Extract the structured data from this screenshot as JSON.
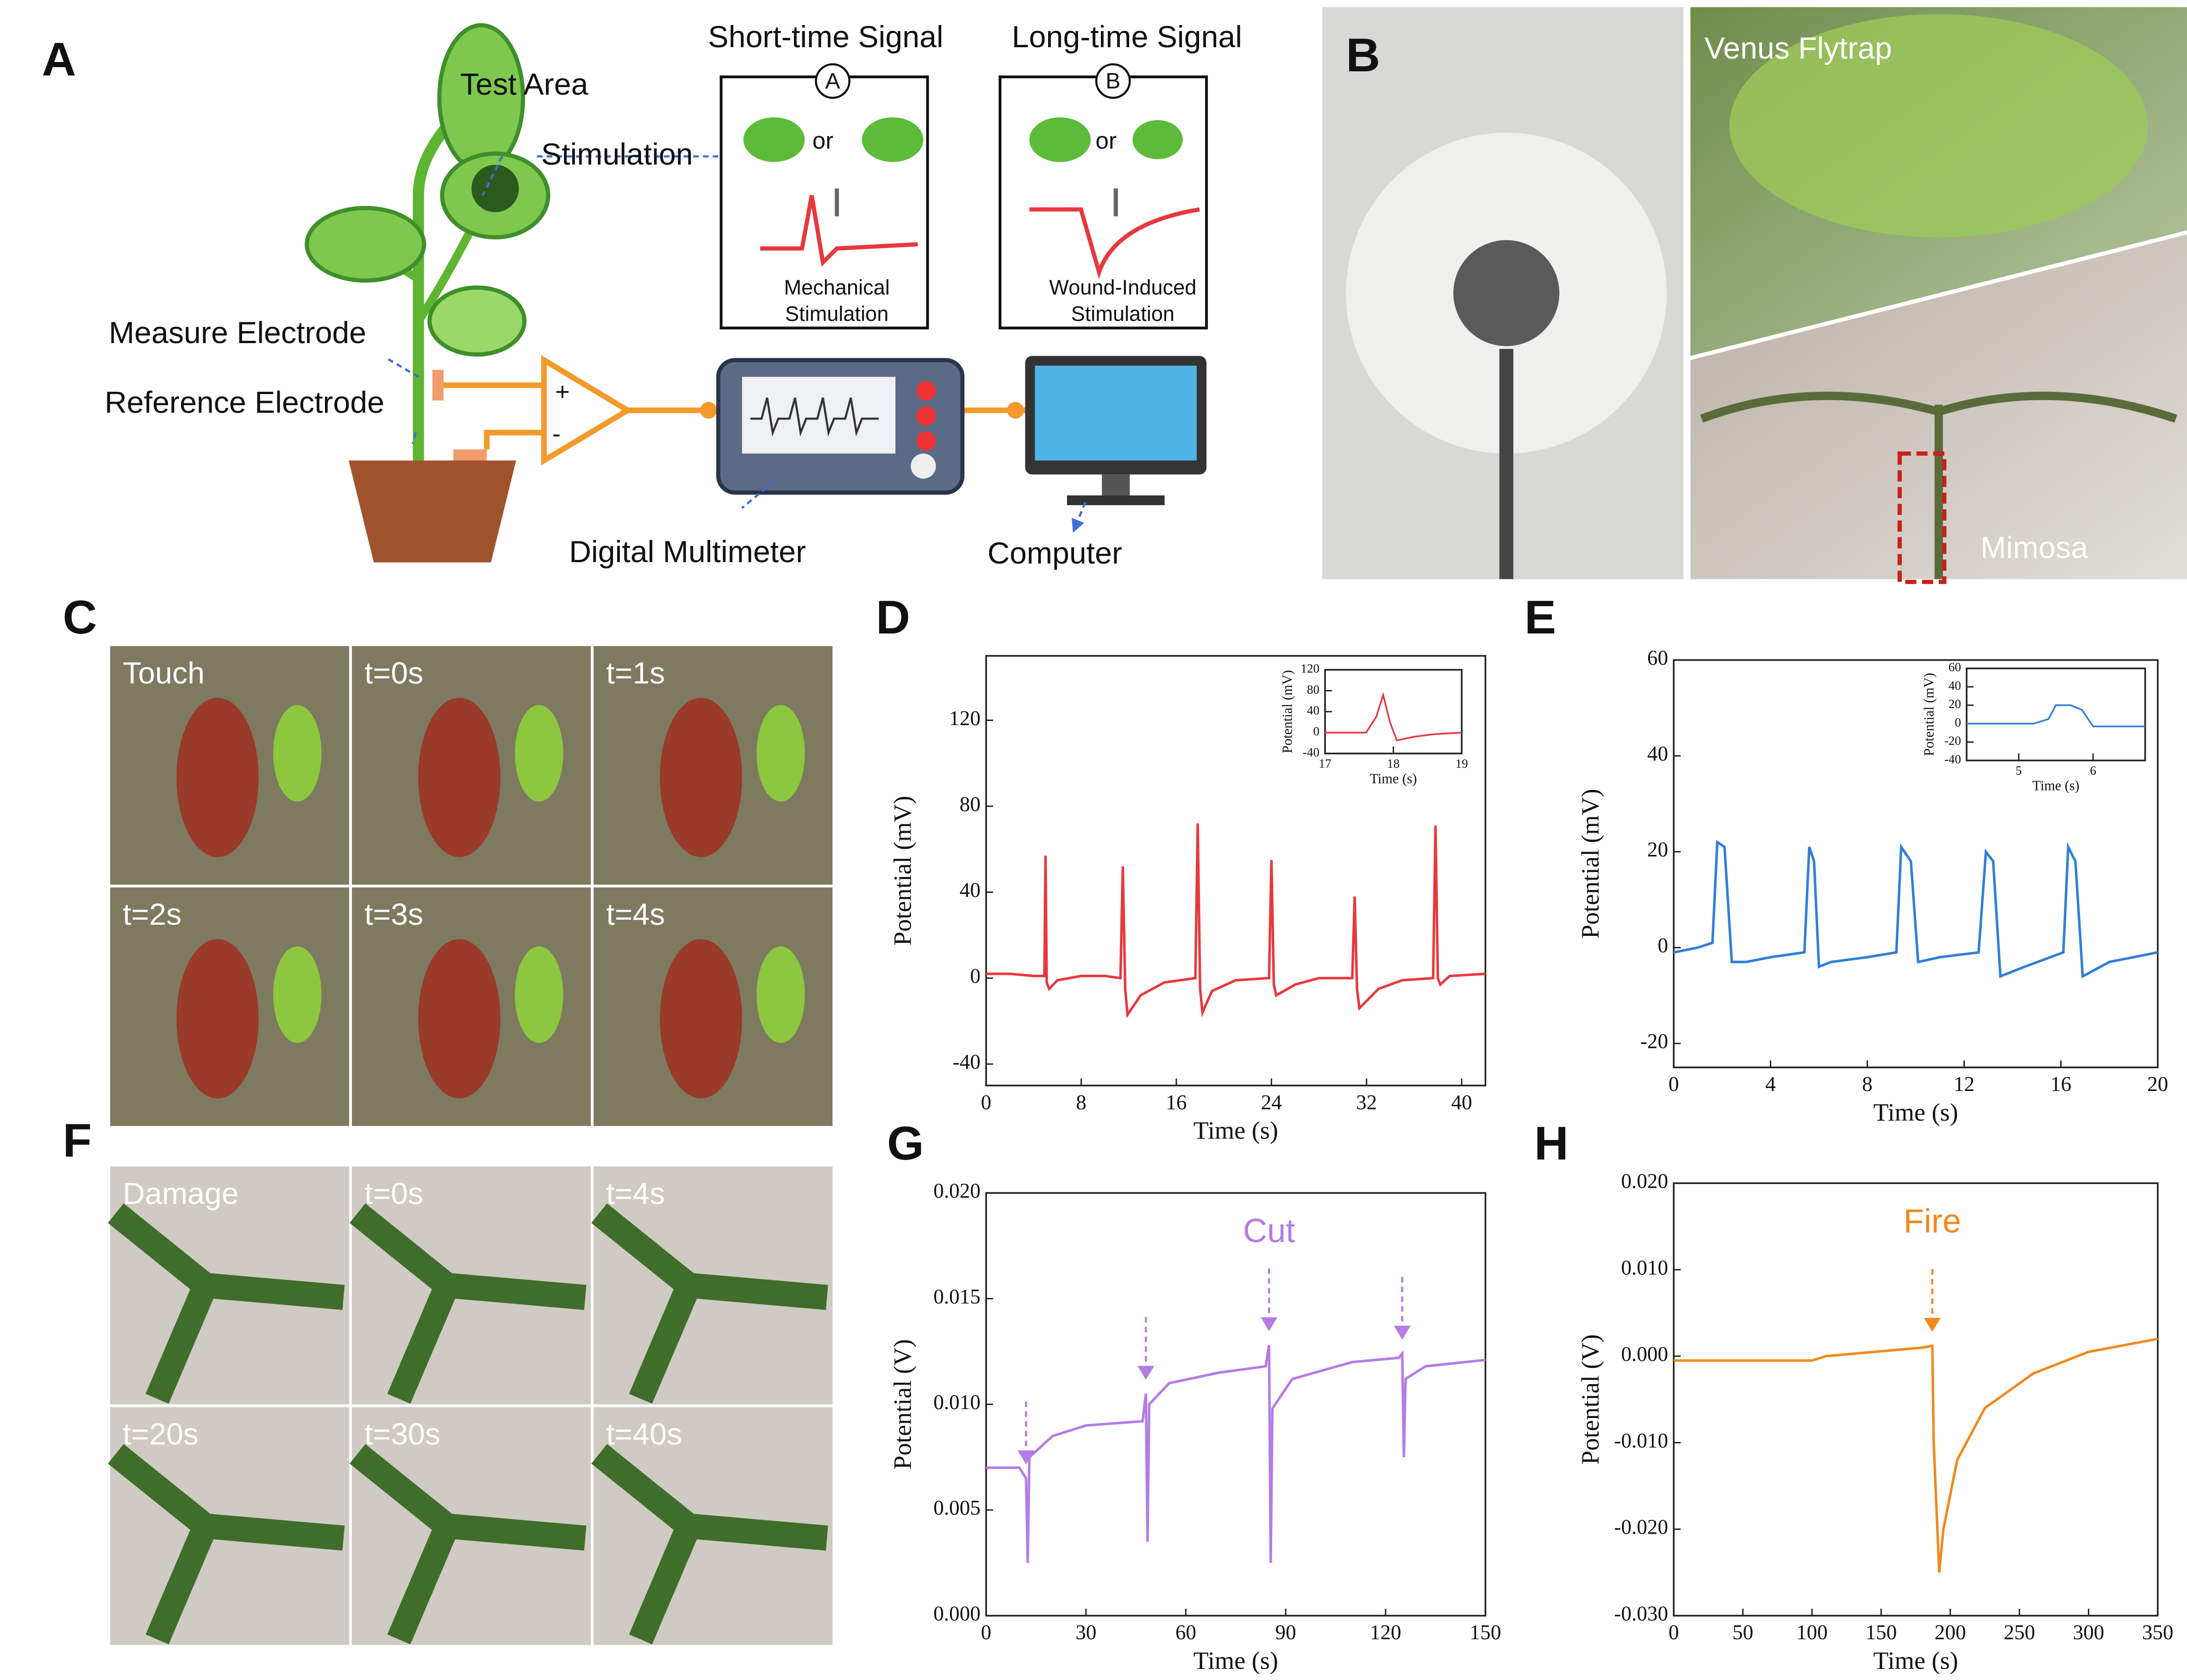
{
  "panel_labels": [
    "A",
    "B",
    "C",
    "D",
    "E",
    "F",
    "G",
    "H"
  ],
  "diagram": {
    "test_area": "Test Area",
    "stimulation": "Stimulation",
    "measure_electrode": "Measure Electrode",
    "reference_electrode": "Reference Electrode",
    "digital_multimeter": "Digital Multimeter",
    "computer": "Computer",
    "plus": "+",
    "minus": "-",
    "short": {
      "title": "Short-time Signal",
      "badge": "A",
      "or": "or",
      "caption": [
        "Mechanical",
        "Stimulation"
      ]
    },
    "long": {
      "title": "Long-time Signal",
      "badge": "B",
      "or": "or",
      "caption": [
        "Wound-Induced",
        "Stimulation"
      ]
    }
  },
  "photos": {
    "venus": "Venus Flytrap",
    "mimosa": "Mimosa",
    "touch_frames": [
      "Touch",
      "t=0s",
      "t=1s",
      "t=2s",
      "t=3s",
      "t=4s"
    ],
    "damage_frames": [
      "Damage",
      "t=0s",
      "t=4s",
      "t=20s",
      "t=30s",
      "t=40s"
    ]
  },
  "chart_data": [
    {
      "type": "line",
      "xlabel": "Time (s)",
      "ylabel": "Potential (mV)",
      "color": "#e8383d",
      "xlim": [
        0,
        42
      ],
      "ylim": [
        -50,
        150
      ],
      "xticks": [
        0,
        8,
        16,
        24,
        32,
        40
      ],
      "yticks": [
        -40,
        0,
        40,
        80,
        120
      ],
      "x": [
        0,
        2,
        4,
        4.9,
        5.0,
        5.1,
        5.3,
        6,
        8,
        10,
        11.3,
        11.5,
        11.7,
        11.9,
        13,
        15,
        17.6,
        17.8,
        18.0,
        18.2,
        19,
        21,
        23.8,
        24,
        24.2,
        24.4,
        26,
        28,
        30.8,
        31,
        31.2,
        31.4,
        33,
        35,
        37.6,
        37.8,
        38,
        38.2,
        39,
        42
      ],
      "values": [
        2,
        2,
        1,
        1,
        57,
        -2,
        -5,
        -1,
        1,
        1,
        0,
        52,
        -5,
        -17,
        -8,
        -2,
        0,
        72,
        -5,
        -16,
        -6,
        -1,
        0,
        55,
        -3,
        -8,
        -3,
        0,
        0,
        38,
        -5,
        -14,
        -5,
        -1,
        0,
        71,
        0,
        -3,
        1,
        2
      ]
    },
    {
      "type": "line",
      "xlabel": "Time (s)",
      "ylabel": "Potential (mV)",
      "color": "#e8383d",
      "xlim": [
        17,
        19
      ],
      "ylim": [
        -40,
        120
      ],
      "xticks": [
        17,
        18,
        19
      ],
      "yticks": [
        -40,
        0,
        40,
        80,
        120
      ],
      "x": [
        17,
        17.6,
        17.75,
        17.85,
        17.95,
        18.05,
        18.3,
        18.6,
        19
      ],
      "values": [
        0,
        0,
        30,
        72,
        20,
        -15,
        -8,
        -3,
        0
      ]
    },
    {
      "type": "line",
      "xlabel": "Time (s)",
      "ylabel": "Potential (mV)",
      "color": "#2f7fd8",
      "xlim": [
        0,
        20
      ],
      "ylim": [
        -25,
        60
      ],
      "xticks": [
        0,
        4,
        8,
        12,
        16,
        20
      ],
      "yticks": [
        -20,
        0,
        20,
        40,
        60
      ],
      "x": [
        0,
        1,
        1.6,
        1.8,
        2.1,
        2.4,
        3,
        4,
        5.4,
        5.6,
        5.8,
        6.0,
        6.5,
        8,
        9.2,
        9.4,
        9.8,
        10.1,
        11,
        12.6,
        12.9,
        13.2,
        13.5,
        14.5,
        16.1,
        16.3,
        16.6,
        16.9,
        18,
        20
      ],
      "values": [
        -1,
        0,
        1,
        22,
        21,
        -3,
        -3,
        -2,
        -1,
        21,
        18,
        -4,
        -3,
        -2,
        -1,
        21,
        18,
        -3,
        -2,
        -1,
        20,
        18,
        -6,
        -4,
        -1,
        21,
        18,
        -6,
        -3,
        -1
      ]
    },
    {
      "type": "line",
      "xlabel": "Time (s)",
      "ylabel": "Potential (mV)",
      "color": "#2f7fd8",
      "xlim": [
        4.3,
        6.7
      ],
      "ylim": [
        -40,
        60
      ],
      "xticks": [
        5,
        6
      ],
      "yticks": [
        -40,
        -20,
        0,
        20,
        40,
        60
      ],
      "x": [
        4.3,
        5.2,
        5.4,
        5.5,
        5.7,
        5.85,
        6.0,
        6.7
      ],
      "values": [
        0,
        0,
        5,
        20,
        20,
        15,
        -3,
        -3
      ]
    },
    {
      "type": "line",
      "xlabel": "Time (s)",
      "ylabel": "Potential (V)",
      "color": "#b57be6",
      "xlim": [
        0,
        150
      ],
      "ylim": [
        0,
        0.02
      ],
      "xticks": [
        0,
        30,
        60,
        90,
        120,
        150
      ],
      "yticks": [
        {
          "value": 0,
          "label": "0.000"
        },
        {
          "value": 0.005,
          "label": "0.005"
        },
        {
          "value": 0.01,
          "label": "0.010"
        },
        {
          "value": 0.015,
          "label": "0.015"
        },
        {
          "value": 0.02,
          "label": "0.020"
        }
      ],
      "x": [
        0,
        10,
        12,
        12.5,
        13,
        20,
        30,
        47,
        48,
        48.5,
        49,
        55,
        70,
        84,
        85,
        85.5,
        86,
        92,
        110,
        124,
        125,
        125.5,
        126,
        132,
        150
      ],
      "values": [
        0.007,
        0.007,
        0.0065,
        0.0025,
        0.0075,
        0.0085,
        0.009,
        0.0092,
        0.0105,
        0.0035,
        0.01,
        0.011,
        0.0115,
        0.0118,
        0.0128,
        0.0025,
        0.0098,
        0.0112,
        0.012,
        0.0122,
        0.0124,
        0.0075,
        0.0112,
        0.0118,
        0.0121
      ],
      "annotation": {
        "text": "Cut",
        "x": [
          12,
          48,
          85,
          125
        ]
      }
    },
    {
      "type": "line",
      "xlabel": "Time (s)",
      "ylabel": "Potential (V)",
      "color": "#f08a1c",
      "xlim": [
        0,
        350
      ],
      "ylim": [
        -0.03,
        0.02
      ],
      "xticks": [
        0,
        50,
        100,
        150,
        200,
        250,
        300,
        350
      ],
      "yticks": [
        {
          "value": -0.03,
          "label": "-0.030"
        },
        {
          "value": -0.02,
          "label": "-0.020"
        },
        {
          "value": -0.01,
          "label": "-0.010"
        },
        {
          "value": 0,
          "label": "0.000"
        },
        {
          "value": 0.01,
          "label": "0.010"
        },
        {
          "value": 0.02,
          "label": "0.020"
        }
      ],
      "x": [
        0,
        100,
        110,
        180,
        187,
        188,
        192,
        195,
        205,
        225,
        260,
        300,
        350
      ],
      "values": [
        -0.0005,
        -0.0005,
        0,
        0.001,
        0.0012,
        -0.01,
        -0.025,
        -0.02,
        -0.012,
        -0.006,
        -0.002,
        0.0005,
        0.002
      ],
      "annotation": {
        "text": "Fire",
        "x": [
          187
        ]
      }
    }
  ]
}
